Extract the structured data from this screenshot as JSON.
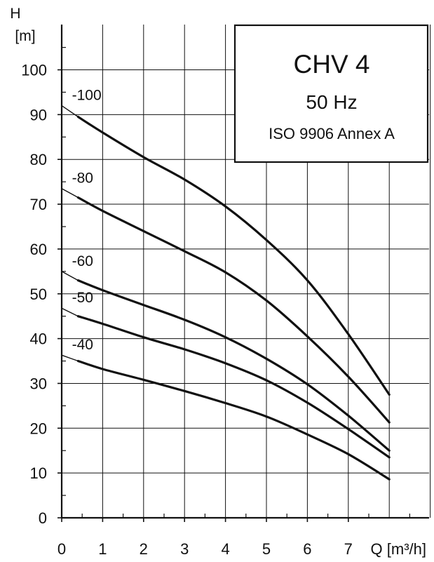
{
  "chart_data": {
    "type": "line",
    "title": "CHV 4",
    "subtitle": "50 Hz",
    "note": "ISO 9906 Annex A",
    "ylabel_symbol": "H",
    "ylabel_unit": "[m]",
    "xlabel": "Q [m³/h]",
    "xlim": [
      0,
      9
    ],
    "ylim": [
      0,
      110
    ],
    "x_ticks": [
      0,
      1,
      2,
      3,
      4,
      5,
      6,
      7
    ],
    "x_tick_labels": [
      "0",
      "1",
      "2",
      "3",
      "4",
      "5",
      "6",
      "7"
    ],
    "y_ticks": [
      0,
      10,
      20,
      30,
      40,
      50,
      60,
      70,
      80,
      90,
      100
    ],
    "y_tick_labels": [
      "0",
      "10",
      "20",
      "30",
      "40",
      "50",
      "60",
      "70",
      "80",
      "90",
      "100"
    ],
    "grid": true,
    "line_color": "#111111",
    "series": [
      {
        "name": "-100",
        "x": [
          0,
          0.4,
          1,
          2,
          3,
          4,
          5,
          6,
          7,
          8
        ],
        "y": [
          92,
          89.5,
          86,
          80.5,
          75.5,
          69.5,
          62,
          53,
          41,
          27.5
        ]
      },
      {
        "name": "-80",
        "x": [
          0,
          0.4,
          1,
          2,
          3,
          4,
          5,
          6,
          7,
          8
        ],
        "y": [
          73.5,
          71.5,
          68.5,
          64,
          59.5,
          54.8,
          48.5,
          40.5,
          31.5,
          21.3
        ]
      },
      {
        "name": "-60",
        "x": [
          0,
          0.4,
          1,
          2,
          3,
          4,
          5,
          6,
          7,
          8
        ],
        "y": [
          55,
          53,
          50.8,
          47.5,
          44.2,
          40.3,
          35.5,
          29.8,
          22.8,
          15
        ]
      },
      {
        "name": "-50",
        "x": [
          0,
          0.4,
          1,
          2,
          3,
          4,
          5,
          6,
          7,
          8
        ],
        "y": [
          46.8,
          45,
          43.3,
          40.3,
          37.6,
          34.5,
          30.7,
          25.7,
          19.8,
          13.5
        ]
      },
      {
        "name": "-40",
        "x": [
          0,
          0.4,
          1,
          2,
          3,
          4,
          5,
          6,
          7,
          8
        ],
        "y": [
          36.3,
          35,
          33.2,
          30.8,
          28.3,
          25.6,
          22.6,
          18.6,
          14.2,
          8.6
        ]
      }
    ]
  }
}
